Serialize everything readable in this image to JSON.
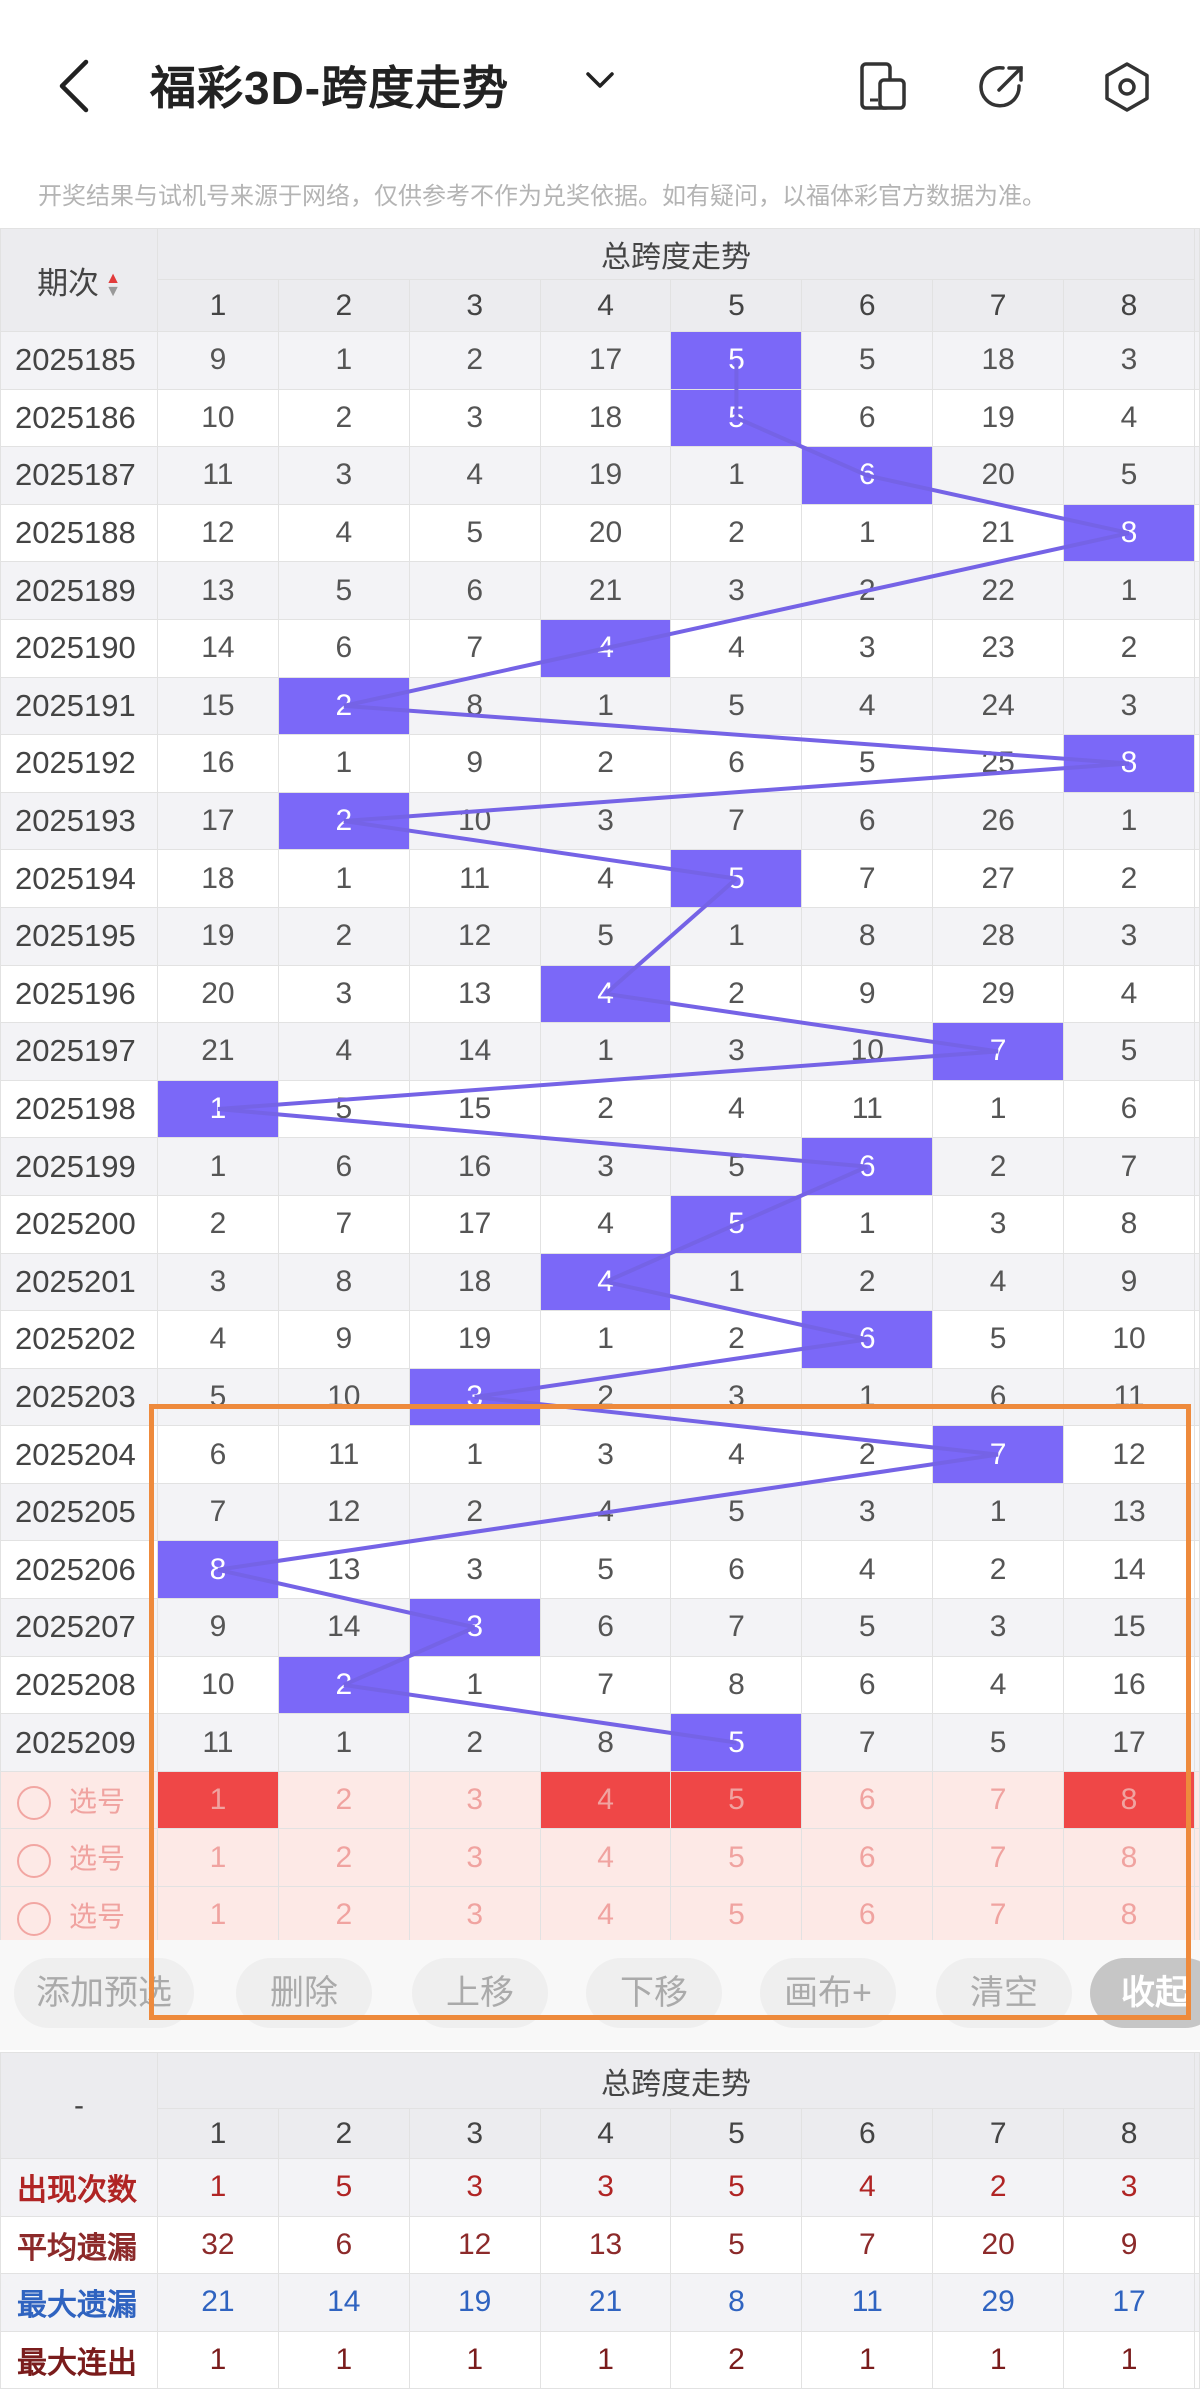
{
  "header": {
    "title": "福彩3D-跨度走势",
    "notice": "开奖结果与试机号来源于网络，仅供参考不作为兑奖依据。如有疑问，以福体彩官方数据为准。"
  },
  "table": {
    "period_header": "期次",
    "group_header": "总跨度走势",
    "columns": [
      "1",
      "2",
      "3",
      "4",
      "5",
      "6",
      "7",
      "8"
    ],
    "rows": [
      {
        "period": "2025185",
        "cells": [
          "9",
          "1",
          "2",
          "17",
          "5",
          "5",
          "18",
          "3"
        ],
        "hit": 4
      },
      {
        "period": "2025186",
        "cells": [
          "10",
          "2",
          "3",
          "18",
          "5",
          "6",
          "19",
          "4"
        ],
        "hit": 4
      },
      {
        "period": "2025187",
        "cells": [
          "11",
          "3",
          "4",
          "19",
          "1",
          "6",
          "20",
          "5"
        ],
        "hit": 5
      },
      {
        "period": "2025188",
        "cells": [
          "12",
          "4",
          "5",
          "20",
          "2",
          "1",
          "21",
          "8"
        ],
        "hit": 7
      },
      {
        "period": "2025189",
        "cells": [
          "13",
          "5",
          "6",
          "21",
          "3",
          "2",
          "22",
          "1"
        ],
        "hit": 8
      },
      {
        "period": "2025190",
        "cells": [
          "14",
          "6",
          "7",
          "4",
          "4",
          "3",
          "23",
          "2"
        ],
        "hit": 3
      },
      {
        "period": "2025191",
        "cells": [
          "15",
          "2",
          "8",
          "1",
          "5",
          "4",
          "24",
          "3"
        ],
        "hit": 1
      },
      {
        "period": "2025192",
        "cells": [
          "16",
          "1",
          "9",
          "2",
          "6",
          "5",
          "25",
          "8"
        ],
        "hit": 7
      },
      {
        "period": "2025193",
        "cells": [
          "17",
          "2",
          "10",
          "3",
          "7",
          "6",
          "26",
          "1"
        ],
        "hit": 1
      },
      {
        "period": "2025194",
        "cells": [
          "18",
          "1",
          "11",
          "4",
          "5",
          "7",
          "27",
          "2"
        ],
        "hit": 4
      },
      {
        "period": "2025195",
        "cells": [
          "19",
          "2",
          "12",
          "5",
          "1",
          "8",
          "28",
          "3"
        ],
        "hit": 8
      },
      {
        "period": "2025196",
        "cells": [
          "20",
          "3",
          "13",
          "4",
          "2",
          "9",
          "29",
          "4"
        ],
        "hit": 3
      },
      {
        "period": "2025197",
        "cells": [
          "21",
          "4",
          "14",
          "1",
          "3",
          "10",
          "7",
          "5"
        ],
        "hit": 6
      },
      {
        "period": "2025198",
        "cells": [
          "1",
          "5",
          "15",
          "2",
          "4",
          "11",
          "1",
          "6"
        ],
        "hit": 0
      },
      {
        "period": "2025199",
        "cells": [
          "1",
          "6",
          "16",
          "3",
          "5",
          "6",
          "2",
          "7"
        ],
        "hit": 5
      },
      {
        "period": "2025200",
        "cells": [
          "2",
          "7",
          "17",
          "4",
          "5",
          "1",
          "3",
          "8"
        ],
        "hit": 4
      },
      {
        "period": "2025201",
        "cells": [
          "3",
          "8",
          "18",
          "4",
          "1",
          "2",
          "4",
          "9"
        ],
        "hit": 3
      },
      {
        "period": "2025202",
        "cells": [
          "4",
          "9",
          "19",
          "1",
          "2",
          "6",
          "5",
          "10"
        ],
        "hit": 5
      },
      {
        "period": "2025203",
        "cells": [
          "5",
          "10",
          "3",
          "2",
          "3",
          "1",
          "6",
          "11"
        ],
        "hit": 2
      },
      {
        "period": "2025204",
        "cells": [
          "6",
          "11",
          "1",
          "3",
          "4",
          "2",
          "7",
          "12"
        ],
        "hit": 6
      },
      {
        "period": "2025205",
        "cells": [
          "7",
          "12",
          "2",
          "4",
          "5",
          "3",
          "1",
          "13"
        ],
        "hit": 8
      },
      {
        "period": "2025206",
        "cells": [
          "8",
          "13",
          "3",
          "5",
          "6",
          "4",
          "2",
          "14"
        ],
        "hit": 0
      },
      {
        "period": "2025207",
        "cells": [
          "9",
          "14",
          "3",
          "6",
          "7",
          "5",
          "3",
          "15"
        ],
        "hit": 2
      },
      {
        "period": "2025208",
        "cells": [
          "10",
          "2",
          "1",
          "7",
          "8",
          "6",
          "4",
          "16"
        ],
        "hit": 1
      },
      {
        "period": "2025209",
        "cells": [
          "11",
          "1",
          "2",
          "8",
          "5",
          "7",
          "5",
          "17"
        ],
        "hit": 4
      }
    ],
    "pick_rows": [
      {
        "label": "选号",
        "cells": [
          "1",
          "2",
          "3",
          "4",
          "5",
          "6",
          "7",
          "8"
        ],
        "selected": [
          0,
          3,
          4,
          7
        ]
      },
      {
        "label": "选号",
        "cells": [
          "1",
          "2",
          "3",
          "4",
          "5",
          "6",
          "7",
          "8"
        ],
        "selected": []
      },
      {
        "label": "选号",
        "cells": [
          "1",
          "2",
          "3",
          "4",
          "5",
          "6",
          "7",
          "8"
        ],
        "selected": []
      }
    ]
  },
  "toolbar": {
    "add": "添加预选",
    "delete": "删除",
    "up": "上移",
    "down": "下移",
    "canvas": "画布+",
    "clear": "清空",
    "collapse": "收起"
  },
  "stats": {
    "corner": "-",
    "group_header": "总跨度走势",
    "columns": [
      "1",
      "2",
      "3",
      "4",
      "5",
      "6",
      "7",
      "8"
    ],
    "rows": [
      {
        "label": "出现次数",
        "values": [
          "1",
          "5",
          "3",
          "3",
          "5",
          "4",
          "2",
          "3"
        ],
        "color": "#b02424"
      },
      {
        "label": "平均遗漏",
        "values": [
          "32",
          "6",
          "12",
          "13",
          "5",
          "7",
          "20",
          "9"
        ],
        "color": "#8c2a2a"
      },
      {
        "label": "最大遗漏",
        "values": [
          "21",
          "14",
          "19",
          "21",
          "8",
          "11",
          "29",
          "17"
        ],
        "color": "#2f63c0"
      },
      {
        "label": "最大连出",
        "values": [
          "1",
          "1",
          "1",
          "1",
          "2",
          "1",
          "1",
          "1"
        ],
        "color": "#7a1c1c"
      }
    ]
  },
  "colors": {
    "hit": "#7b68f8",
    "line": "#7563e6",
    "pick_selected": "#ef4747",
    "highlight_box": "#ee8a3c"
  }
}
